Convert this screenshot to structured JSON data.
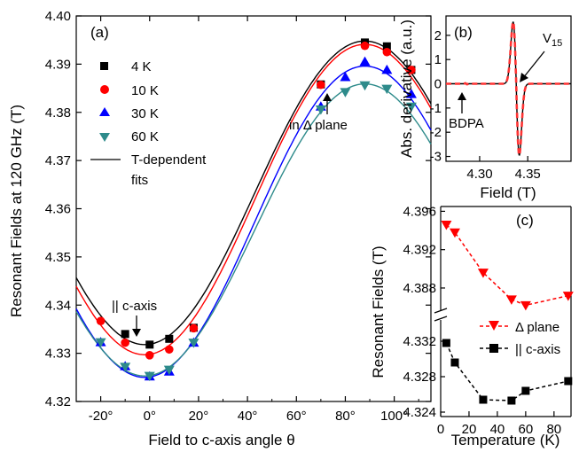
{
  "chart_data": [
    {
      "type": "scatter",
      "panel": "(a)",
      "xlabel": "Field to c-axis angle θ",
      "ylabel": "Resonant Fields at 120 GHz (T)",
      "xlim": [
        -30,
        115
      ],
      "ylim": [
        4.32,
        4.4
      ],
      "xticks": [
        -20,
        0,
        20,
        40,
        60,
        80,
        100
      ],
      "xtick_labels": [
        "-20°",
        "0°",
        "20°",
        "40°",
        "60°",
        "80°",
        "100°"
      ],
      "yticks": [
        4.32,
        4.33,
        4.34,
        4.35,
        4.36,
        4.37,
        4.38,
        4.39,
        4.4
      ],
      "ytick_labels": [
        "4.32",
        "4.33",
        "4.34",
        "4.35",
        "4.36",
        "4.37",
        "4.38",
        "4.39",
        "4.40"
      ],
      "legend_position": "top-left",
      "series": [
        {
          "name": "4 K",
          "marker": "square",
          "color": "#000000",
          "x": [
            -10,
            0,
            8,
            18,
            70,
            88,
            97,
            107
          ],
          "y": [
            4.334,
            4.3318,
            4.333,
            4.3353,
            4.3858,
            4.3945,
            4.3937,
            4.3888
          ]
        },
        {
          "name": "10 K",
          "marker": "circle",
          "color": "#ff0000",
          "x": [
            -20,
            -10,
            0,
            8,
            18,
            70,
            88,
            97,
            107
          ],
          "y": [
            4.3367,
            4.3322,
            4.3296,
            4.3308,
            4.3352,
            4.3857,
            4.3938,
            4.3925,
            4.3888
          ]
        },
        {
          "name": "30 K",
          "marker": "triangle-up",
          "color": "#0000ff",
          "x": [
            -20,
            -10,
            0,
            8,
            18,
            70,
            80,
            88,
            97,
            107
          ],
          "y": [
            4.3323,
            4.3273,
            4.3252,
            4.3262,
            4.3322,
            4.3812,
            4.3873,
            4.3905,
            4.3888,
            4.3838
          ]
        },
        {
          "name": "60 K",
          "marker": "triangle-down",
          "color": "#2e8b8b",
          "x": [
            -20,
            -10,
            0,
            8,
            18,
            70,
            80,
            88,
            97,
            107
          ],
          "y": [
            4.3323,
            4.3272,
            4.3253,
            4.3266,
            4.3322,
            4.3806,
            4.3842,
            4.3856,
            4.3849,
            4.3812
          ]
        },
        {
          "name": "T-dependent fits",
          "type": "line"
        }
      ],
      "fits": [
        {
          "color": "#000000",
          "mid": 4.3633,
          "amp": 0.0315,
          "center": 88
        },
        {
          "color": "#ff0000",
          "mid": 4.3619,
          "amp": 0.0322,
          "center": 88
        },
        {
          "color": "#0000ff",
          "mid": 4.3573,
          "amp": 0.0323,
          "center": 88
        },
        {
          "color": "#2e8b8b",
          "mid": 4.3556,
          "amp": 0.0303,
          "center": 88
        }
      ],
      "annotations": [
        {
          "text": "|| c-axis",
          "at": {
            "x": 0,
            "y": 4.3318
          }
        },
        {
          "text": "in Δ plane",
          "at": {
            "x": 88,
            "y": 4.3856
          }
        }
      ]
    },
    {
      "type": "line",
      "panel": "(b)",
      "xlabel": "Field (T)",
      "ylabel": "Abs. derivative (a.u.)",
      "xlim": [
        4.265,
        4.395
      ],
      "ylim": [
        -3.2,
        2.8
      ],
      "xticks": [
        4.3,
        4.35
      ],
      "xtick_labels": [
        "4.30",
        "4.35"
      ],
      "yticks": [
        -3,
        -2,
        -1,
        0,
        1,
        2
      ],
      "ytick_labels": [
        "-3",
        "-2",
        "-1",
        "0",
        "1",
        "2"
      ],
      "resonance_center": 4.338,
      "resonance_peak": 2.55,
      "resonance_trough": -2.95,
      "bdpa_center": 4.286,
      "series": [
        {
          "style": "solid",
          "color": "#000000"
        },
        {
          "style": "dashed",
          "color": "#ff3333"
        }
      ],
      "annotations": [
        {
          "text": "BDPA",
          "at": {
            "x": 4.286,
            "y": -0.15
          }
        },
        {
          "text": "V",
          "sub": "15",
          "at": {
            "x": 4.343,
            "y": -0.5
          }
        }
      ]
    },
    {
      "type": "line",
      "panel": "(c)",
      "xlabel": "Temperature (K)",
      "ylabel": "Resonant Fields (T)",
      "xlim": [
        0,
        92
      ],
      "upper_ylim": [
        4.3855,
        4.3965
      ],
      "lower_ylim": [
        4.3235,
        4.3345
      ],
      "xticks": [
        0,
        20,
        40,
        60,
        80
      ],
      "xtick_labels": [
        "0",
        "20",
        "40",
        "60",
        "80"
      ],
      "upper_yticks": [
        4.388,
        4.392,
        4.396
      ],
      "upper_ytick_labels": [
        "4.388",
        "4.392",
        "4.396"
      ],
      "lower_yticks": [
        4.324,
        4.328,
        4.332
      ],
      "lower_ytick_labels": [
        "4.324",
        "4.328",
        "4.332"
      ],
      "legend_position": "bottom-right",
      "series": [
        {
          "name": "Δ plane",
          "marker": "triangle-down",
          "color": "#ff0000",
          "x": [
            4,
            10,
            30,
            50,
            60,
            90
          ],
          "y": [
            4.3946,
            4.3938,
            4.3896,
            4.3868,
            4.3862,
            4.3872
          ]
        },
        {
          "name": "|| c-axis",
          "marker": "square",
          "color": "#000000",
          "x": [
            4,
            10,
            30,
            50,
            60,
            90
          ],
          "y": [
            4.3318,
            4.3296,
            4.3254,
            4.3253,
            4.3264,
            4.3275
          ]
        }
      ]
    }
  ]
}
